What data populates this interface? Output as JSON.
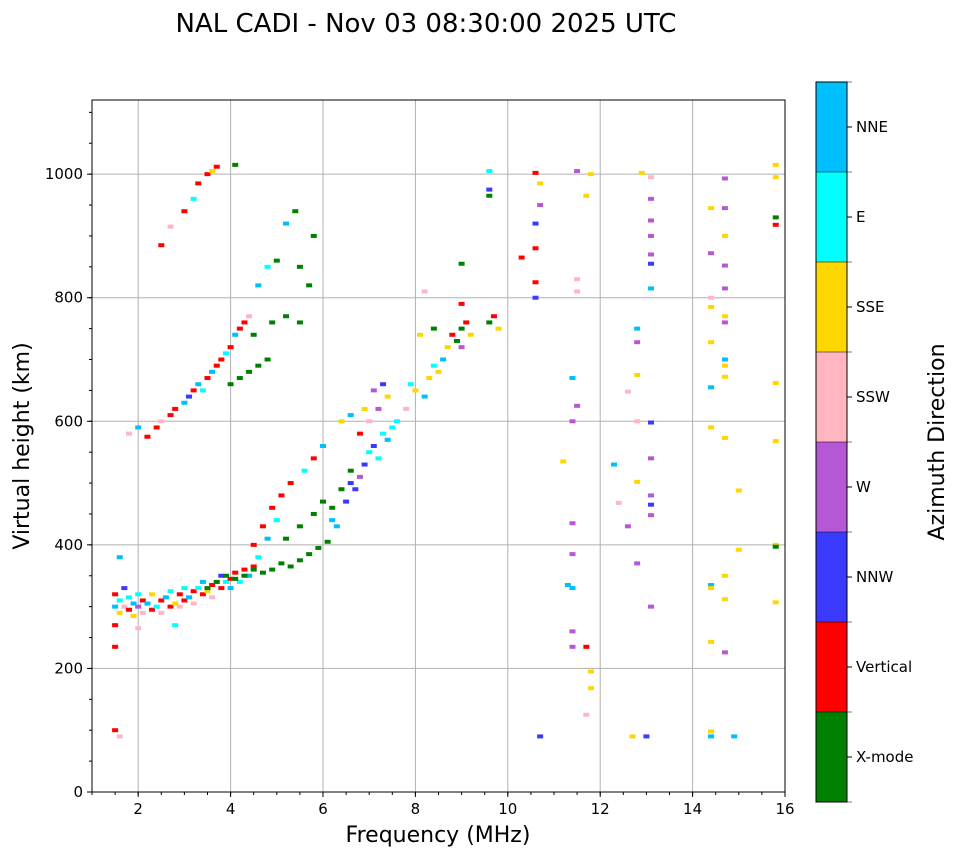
{
  "chart_data": {
    "type": "scatter",
    "title": "NAL CADI - Nov 03 08:30:00 2025 UTC",
    "xlabel": "Frequency (MHz)",
    "ylabel": "Virtual height (km)",
    "xlim": [
      1,
      16
    ],
    "ylim": [
      0,
      1120
    ],
    "xticks": [
      2,
      4,
      6,
      8,
      10,
      12,
      14,
      16
    ],
    "yticks": [
      0,
      200,
      400,
      600,
      800,
      1000
    ],
    "grid": true,
    "colorbar": {
      "label": "Azimuth Direction",
      "categories": [
        "X-mode",
        "Vertical",
        "NNW",
        "W",
        "SSW",
        "SSE",
        "E",
        "NNE"
      ],
      "colors": [
        "#008000",
        "#ff0000",
        "#3a3aff",
        "#b658d6",
        "#ffb6c1",
        "#ffd700",
        "#00ffff",
        "#00bfff"
      ]
    },
    "point_format": [
      "frequency_MHz",
      "height_km",
      "category_index"
    ],
    "points": [
      [
        1.5,
        320,
        1
      ],
      [
        1.5,
        300,
        7
      ],
      [
        1.6,
        310,
        6
      ],
      [
        1.6,
        290,
        5
      ],
      [
        1.7,
        330,
        2
      ],
      [
        1.7,
        300,
        4
      ],
      [
        1.8,
        315,
        6
      ],
      [
        1.8,
        295,
        1
      ],
      [
        1.9,
        305,
        7
      ],
      [
        1.9,
        285,
        5
      ],
      [
        2.0,
        300,
        3
      ],
      [
        2.0,
        320,
        6
      ],
      [
        2.1,
        310,
        1
      ],
      [
        2.1,
        290,
        4
      ],
      [
        2.2,
        305,
        7
      ],
      [
        2.3,
        295,
        1
      ],
      [
        2.3,
        320,
        5
      ],
      [
        2.4,
        300,
        6
      ],
      [
        2.5,
        310,
        1
      ],
      [
        2.5,
        290,
        4
      ],
      [
        2.6,
        315,
        7
      ],
      [
        2.7,
        300,
        1
      ],
      [
        2.7,
        325,
        6
      ],
      [
        2.8,
        305,
        5
      ],
      [
        2.9,
        320,
        1
      ],
      [
        2.9,
        300,
        4
      ],
      [
        3.0,
        330,
        6
      ],
      [
        3.0,
        310,
        1
      ],
      [
        3.1,
        315,
        7
      ],
      [
        3.2,
        325,
        1
      ],
      [
        3.2,
        305,
        4
      ],
      [
        3.3,
        330,
        6
      ],
      [
        3.4,
        320,
        1
      ],
      [
        3.4,
        340,
        7
      ],
      [
        3.5,
        325,
        5
      ],
      [
        3.6,
        335,
        1
      ],
      [
        3.6,
        315,
        4
      ],
      [
        3.7,
        340,
        6
      ],
      [
        3.8,
        330,
        1
      ],
      [
        3.8,
        350,
        2
      ],
      [
        3.9,
        340,
        6
      ],
      [
        4.0,
        345,
        1
      ],
      [
        4.0,
        330,
        7
      ],
      [
        4.1,
        355,
        1
      ],
      [
        4.2,
        340,
        6
      ],
      [
        4.3,
        360,
        1
      ],
      [
        4.4,
        350,
        7
      ],
      [
        4.5,
        365,
        1
      ],
      [
        1.5,
        235,
        1
      ],
      [
        1.5,
        270,
        1
      ],
      [
        1.5,
        100,
        1
      ],
      [
        1.6,
        90,
        4
      ],
      [
        2.0,
        265,
        4
      ],
      [
        1.6,
        380,
        7
      ],
      [
        2.8,
        270,
        6
      ],
      [
        3.5,
        330,
        0
      ],
      [
        3.7,
        340,
        0
      ],
      [
        3.9,
        350,
        0
      ],
      [
        4.1,
        345,
        0
      ],
      [
        4.3,
        350,
        0
      ],
      [
        4.5,
        360,
        0
      ],
      [
        4.7,
        355,
        0
      ],
      [
        4.9,
        360,
        0
      ],
      [
        5.1,
        370,
        0
      ],
      [
        5.3,
        365,
        0
      ],
      [
        5.5,
        375,
        0
      ],
      [
        5.7,
        385,
        0
      ],
      [
        5.9,
        395,
        0
      ],
      [
        6.1,
        405,
        0
      ],
      [
        5.2,
        410,
        0
      ],
      [
        5.5,
        430,
        0
      ],
      [
        5.8,
        450,
        0
      ],
      [
        6.0,
        470,
        0
      ],
      [
        6.2,
        460,
        0
      ],
      [
        6.4,
        490,
        0
      ],
      [
        6.6,
        520,
        0
      ],
      [
        4.5,
        400,
        1
      ],
      [
        4.7,
        430,
        1
      ],
      [
        4.9,
        460,
        1
      ],
      [
        5.1,
        480,
        1
      ],
      [
        4.6,
        380,
        6
      ],
      [
        4.8,
        410,
        7
      ],
      [
        5.0,
        440,
        6
      ],
      [
        5.3,
        500,
        1
      ],
      [
        5.6,
        520,
        6
      ],
      [
        5.8,
        540,
        1
      ],
      [
        6.0,
        560,
        7
      ],
      [
        6.2,
        440,
        7
      ],
      [
        6.3,
        430,
        7
      ],
      [
        6.5,
        470,
        2
      ],
      [
        6.6,
        500,
        2
      ],
      [
        6.7,
        490,
        2
      ],
      [
        6.8,
        510,
        3
      ],
      [
        6.9,
        530,
        2
      ],
      [
        7.0,
        550,
        6
      ],
      [
        7.1,
        560,
        2
      ],
      [
        7.2,
        540,
        6
      ],
      [
        7.3,
        580,
        6
      ],
      [
        7.4,
        570,
        7
      ],
      [
        7.5,
        590,
        6
      ],
      [
        7.6,
        600,
        6
      ],
      [
        7.0,
        600,
        4
      ],
      [
        7.2,
        620,
        3
      ],
      [
        7.4,
        640,
        5
      ],
      [
        6.8,
        580,
        1
      ],
      [
        6.9,
        620,
        5
      ],
      [
        7.1,
        650,
        3
      ],
      [
        7.3,
        660,
        2
      ],
      [
        6.4,
        600,
        5
      ],
      [
        6.6,
        610,
        7
      ],
      [
        7.8,
        620,
        4
      ],
      [
        7.9,
        660,
        6
      ],
      [
        8.0,
        650,
        5
      ],
      [
        8.2,
        640,
        7
      ],
      [
        8.3,
        670,
        5
      ],
      [
        8.4,
        690,
        6
      ],
      [
        8.5,
        680,
        5
      ],
      [
        8.6,
        700,
        7
      ],
      [
        8.7,
        720,
        5
      ],
      [
        8.8,
        740,
        1
      ],
      [
        8.9,
        730,
        0
      ],
      [
        9.0,
        750,
        0
      ],
      [
        9.1,
        760,
        1
      ],
      [
        9.2,
        740,
        5
      ],
      [
        8.1,
        740,
        5
      ],
      [
        8.4,
        750,
        0
      ],
      [
        9.6,
        760,
        0
      ],
      [
        9.8,
        750,
        5
      ],
      [
        9.7,
        770,
        1
      ],
      [
        9.0,
        790,
        1
      ],
      [
        9.0,
        720,
        3
      ],
      [
        8.2,
        810,
        4
      ],
      [
        9.0,
        855,
        0
      ],
      [
        9.6,
        1005,
        6
      ],
      [
        9.6,
        965,
        0
      ],
      [
        9.6,
        975,
        2
      ],
      [
        1.8,
        580,
        4
      ],
      [
        2.0,
        590,
        7
      ],
      [
        2.2,
        575,
        1
      ],
      [
        2.4,
        590,
        1
      ],
      [
        2.5,
        600,
        4
      ],
      [
        2.7,
        610,
        1
      ],
      [
        2.8,
        620,
        1
      ],
      [
        3.0,
        630,
        7
      ],
      [
        3.1,
        640,
        2
      ],
      [
        3.2,
        650,
        1
      ],
      [
        3.3,
        660,
        7
      ],
      [
        3.4,
        650,
        6
      ],
      [
        3.5,
        670,
        1
      ],
      [
        3.6,
        680,
        7
      ],
      [
        3.7,
        690,
        1
      ],
      [
        3.8,
        700,
        1
      ],
      [
        3.9,
        710,
        6
      ],
      [
        4.0,
        720,
        1
      ],
      [
        4.1,
        740,
        7
      ],
      [
        4.2,
        750,
        1
      ],
      [
        4.3,
        760,
        1
      ],
      [
        4.4,
        770,
        4
      ],
      [
        4.0,
        660,
        0
      ],
      [
        4.2,
        670,
        0
      ],
      [
        4.4,
        680,
        0
      ],
      [
        4.6,
        690,
        0
      ],
      [
        4.8,
        700,
        0
      ],
      [
        4.5,
        740,
        0
      ],
      [
        4.9,
        760,
        0
      ],
      [
        5.2,
        770,
        0
      ],
      [
        5.5,
        760,
        0
      ],
      [
        5.7,
        820,
        0
      ],
      [
        5.5,
        850,
        0
      ],
      [
        5.8,
        900,
        0
      ],
      [
        5.4,
        940,
        0
      ],
      [
        5.2,
        920,
        7
      ],
      [
        5.0,
        860,
        0
      ],
      [
        4.8,
        850,
        6
      ],
      [
        4.6,
        820,
        7
      ],
      [
        3.0,
        940,
        1
      ],
      [
        3.2,
        960,
        6
      ],
      [
        3.3,
        985,
        1
      ],
      [
        3.5,
        1000,
        1
      ],
      [
        3.6,
        1005,
        5
      ],
      [
        3.7,
        1012,
        1
      ],
      [
        4.1,
        1015,
        0
      ],
      [
        2.5,
        885,
        1
      ],
      [
        2.7,
        915,
        4
      ],
      [
        10.6,
        1002,
        1
      ],
      [
        10.7,
        985,
        5
      ],
      [
        10.6,
        920,
        2
      ],
      [
        10.6,
        880,
        1
      ],
      [
        10.6,
        825,
        1
      ],
      [
        10.6,
        800,
        2
      ],
      [
        10.3,
        865,
        1
      ],
      [
        10.7,
        950,
        3
      ],
      [
        11.5,
        1005,
        3
      ],
      [
        11.8,
        1000,
        5
      ],
      [
        11.7,
        965,
        5
      ],
      [
        11.5,
        830,
        4
      ],
      [
        11.5,
        810,
        4
      ],
      [
        12.9,
        1002,
        5
      ],
      [
        13.1,
        995,
        4
      ],
      [
        13.1,
        960,
        3
      ],
      [
        13.1,
        925,
        3
      ],
      [
        13.1,
        900,
        3
      ],
      [
        13.1,
        870,
        3
      ],
      [
        13.1,
        855,
        2
      ],
      [
        13.1,
        815,
        7
      ],
      [
        12.8,
        750,
        7
      ],
      [
        12.8,
        728,
        3
      ],
      [
        12.8,
        675,
        5
      ],
      [
        12.6,
        648,
        4
      ],
      [
        13.1,
        598,
        2
      ],
      [
        12.8,
        600,
        4
      ],
      [
        13.1,
        540,
        3
      ],
      [
        12.8,
        502,
        5
      ],
      [
        13.1,
        480,
        3
      ],
      [
        13.1,
        465,
        2
      ],
      [
        13.1,
        448,
        3
      ],
      [
        12.6,
        430,
        3
      ],
      [
        12.4,
        468,
        4
      ],
      [
        12.3,
        530,
        7
      ],
      [
        11.4,
        670,
        7
      ],
      [
        11.5,
        625,
        3
      ],
      [
        11.4,
        600,
        3
      ],
      [
        11.2,
        535,
        5
      ],
      [
        11.4,
        435,
        3
      ],
      [
        11.4,
        385,
        3
      ],
      [
        11.3,
        335,
        7
      ],
      [
        11.4,
        330,
        7
      ],
      [
        11.4,
        260,
        3
      ],
      [
        11.4,
        235,
        3
      ],
      [
        11.7,
        235,
        1
      ],
      [
        11.8,
        195,
        5
      ],
      [
        11.8,
        168,
        5
      ],
      [
        11.7,
        125,
        4
      ],
      [
        12.8,
        370,
        3
      ],
      [
        13.1,
        300,
        3
      ],
      [
        10.7,
        90,
        2
      ],
      [
        12.7,
        90,
        5
      ],
      [
        13.0,
        90,
        2
      ],
      [
        14.4,
        945,
        5
      ],
      [
        14.7,
        945,
        3
      ],
      [
        14.4,
        872,
        3
      ],
      [
        14.7,
        900,
        5
      ],
      [
        14.7,
        852,
        3
      ],
      [
        14.4,
        800,
        4
      ],
      [
        14.4,
        785,
        5
      ],
      [
        14.7,
        815,
        3
      ],
      [
        14.7,
        770,
        5
      ],
      [
        14.7,
        760,
        3
      ],
      [
        14.4,
        728,
        5
      ],
      [
        14.7,
        700,
        7
      ],
      [
        14.7,
        690,
        5
      ],
      [
        14.7,
        672,
        5
      ],
      [
        14.4,
        655,
        7
      ],
      [
        14.4,
        590,
        5
      ],
      [
        14.7,
        573,
        5
      ],
      [
        15.0,
        488,
        5
      ],
      [
        15.0,
        392,
        5
      ],
      [
        14.7,
        350,
        5
      ],
      [
        14.4,
        335,
        7
      ],
      [
        14.4,
        330,
        5
      ],
      [
        14.7,
        312,
        5
      ],
      [
        14.4,
        243,
        5
      ],
      [
        14.7,
        226,
        3
      ],
      [
        14.4,
        98,
        5
      ],
      [
        14.4,
        90,
        7
      ],
      [
        14.9,
        90,
        7
      ],
      [
        14.7,
        993,
        3
      ],
      [
        15.8,
        1015,
        5
      ],
      [
        15.8,
        995,
        5
      ],
      [
        15.8,
        930,
        0
      ],
      [
        15.8,
        918,
        1
      ],
      [
        15.8,
        662,
        5
      ],
      [
        15.8,
        568,
        5
      ],
      [
        15.8,
        400,
        5
      ],
      [
        15.8,
        397,
        0
      ],
      [
        15.8,
        307,
        5
      ]
    ]
  }
}
